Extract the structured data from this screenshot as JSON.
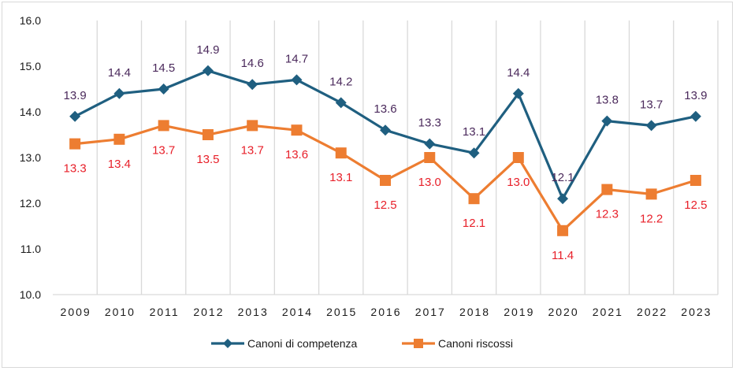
{
  "chart_data": {
    "type": "line",
    "title": "",
    "xlabel": "",
    "ylabel": "",
    "categories": [
      "2009",
      "2010",
      "2011",
      "2012",
      "2013",
      "2014",
      "2015",
      "2016",
      "2017",
      "2018",
      "2019",
      "2020",
      "2021",
      "2022",
      "2023"
    ],
    "ylim": [
      10.0,
      16.0
    ],
    "yticks": [
      "10.0",
      "11.0",
      "12.0",
      "13.0",
      "14.0",
      "15.0",
      "16.0"
    ],
    "grid": "vertical",
    "legend_position": "bottom",
    "series": [
      {
        "name": "Canoni di competenza",
        "color": "#1f5f80",
        "label_color": "#4b2a5c",
        "marker": "diamond",
        "label_position": "above",
        "values": [
          13.9,
          14.4,
          14.5,
          14.9,
          14.6,
          14.7,
          14.2,
          13.6,
          13.3,
          13.1,
          14.4,
          12.1,
          13.8,
          13.7,
          13.9
        ],
        "labels": [
          "13.9",
          "14.4",
          "14.5",
          "14.9",
          "14.6",
          "14.7",
          "14.2",
          "13.6",
          "13.3",
          "13.1",
          "14.4",
          "12.1",
          "13.8",
          "13.7",
          "13.9"
        ]
      },
      {
        "name": "Canoni riscossi",
        "color": "#ed7d31",
        "label_color": "#e8202a",
        "marker": "square",
        "label_position": "below",
        "values": [
          13.3,
          13.4,
          13.7,
          13.5,
          13.7,
          13.6,
          13.1,
          12.5,
          13.0,
          12.1,
          13.0,
          11.4,
          12.3,
          12.2,
          12.5
        ],
        "labels": [
          "13.3",
          "13.4",
          "13.7",
          "13.5",
          "13.7",
          "13.6",
          "13.1",
          "12.5",
          "13.0",
          "12.1",
          "13.0",
          "11.4",
          "12.3",
          "12.2",
          "12.5"
        ]
      }
    ]
  }
}
